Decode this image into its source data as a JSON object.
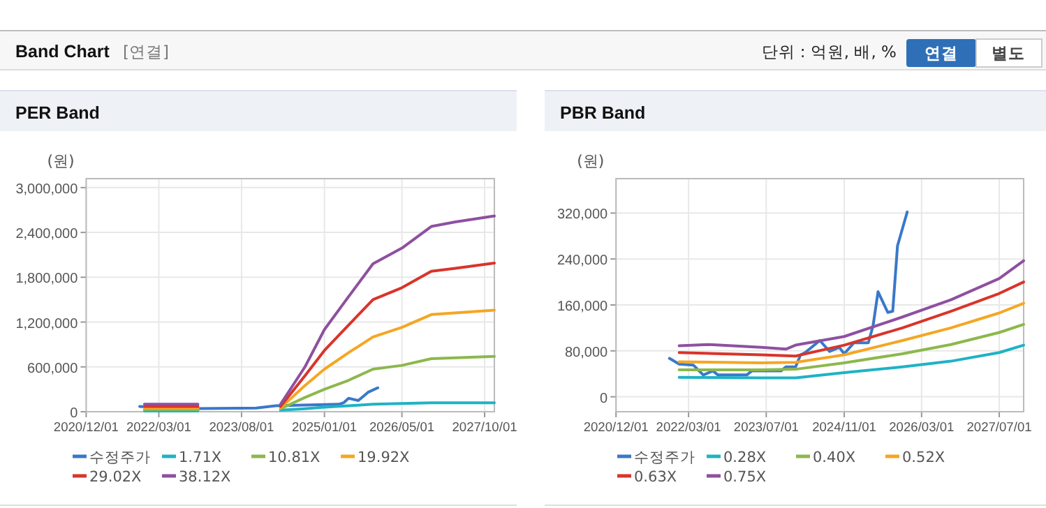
{
  "chart_data": [
    {
      "type": "other",
      "title": "Band Chart",
      "annotations": [
        "[연결]",
        "단위 : 억원, 배, %",
        "연결",
        "별도"
      ]
    },
    {
      "type": "line",
      "title": "PER Band",
      "ylabel": "(원)",
      "grid": true,
      "legend": "bottom",
      "xlim": [
        "2020-12-01",
        "2027-12-01"
      ],
      "xticks": [
        {
          "value": "2020-12-01",
          "label": "2020/12/01"
        },
        {
          "value": "2022-03-01",
          "label": "2022/03/01"
        },
        {
          "value": "2023-08-01",
          "label": "2023/08/01"
        },
        {
          "value": "2025-01-01",
          "label": "2025/01/01"
        },
        {
          "value": "2026-05-01",
          "label": "2026/05/01"
        },
        {
          "value": "2027-10-01",
          "label": "2027/10/01"
        }
      ],
      "ylim": [
        0,
        3120000
      ],
      "yticks": [
        0,
        {
          "value": 600000,
          "label": "600,000"
        },
        {
          "value": 1200000,
          "label": "1,200,000"
        },
        {
          "value": 1800000,
          "label": "1,800,000"
        },
        {
          "value": 2400000,
          "label": "2,400,000"
        },
        {
          "value": 3000000,
          "label": "3,000,000"
        }
      ],
      "series": [
        {
          "name": "수정주가",
          "color": "#3a78c9",
          "x": [
            "2021-11",
            "2022-06",
            "2023-11",
            "2024-03",
            "2025-04",
            "2025-05",
            "2025-06",
            "2025-08",
            "2025-10",
            "2025-12"
          ],
          "values": [
            70000,
            40000,
            50000,
            80000,
            100000,
            120000,
            180000,
            150000,
            260000,
            320000
          ]
        },
        {
          "name": "1.71X",
          "color": "#1eb3c4",
          "x": [
            "2021-12",
            "2022-11",
            "2022-12",
            "2024-04",
            "2024-09",
            "2025-01",
            "2025-06",
            "2025-11",
            "2026-05",
            "2026-11",
            "2027-12"
          ],
          "values": [
            10000,
            10000,
            null,
            20000,
            40000,
            60000,
            80000,
            100000,
            110000,
            120000,
            120000
          ]
        },
        {
          "name": "10.81X",
          "color": "#8cb84c",
          "x": [
            "2021-12",
            "2022-11",
            "2022-12",
            "2024-04",
            "2024-09",
            "2025-01",
            "2025-06",
            "2025-11",
            "2026-05",
            "2026-11",
            "2027-12"
          ],
          "values": [
            30000,
            30000,
            null,
            40000,
            190000,
            300000,
            420000,
            570000,
            620000,
            710000,
            740000
          ]
        },
        {
          "name": "19.92X",
          "color": "#f5a623",
          "x": [
            "2021-12",
            "2022-11",
            "2022-12",
            "2024-04",
            "2024-09",
            "2025-01",
            "2025-06",
            "2025-11",
            "2026-05",
            "2026-11",
            "2027-12"
          ],
          "values": [
            50000,
            50000,
            null,
            50000,
            350000,
            570000,
            790000,
            1000000,
            1130000,
            1300000,
            1360000
          ]
        },
        {
          "name": "29.02X",
          "color": "#d9342b",
          "x": [
            "2021-12",
            "2022-11",
            "2022-12",
            "2024-04",
            "2024-09",
            "2025-01",
            "2025-06",
            "2025-11",
            "2026-05",
            "2026-11",
            "2027-04",
            "2027-12"
          ],
          "values": [
            70000,
            70000,
            null,
            70000,
            480000,
            820000,
            1160000,
            1500000,
            1660000,
            1880000,
            1920000,
            1990000
          ]
        },
        {
          "name": "38.12X",
          "color": "#8e50a0",
          "x": [
            "2021-12",
            "2022-11",
            "2022-12",
            "2024-04",
            "2024-09",
            "2025-01",
            "2025-06",
            "2025-11",
            "2026-05",
            "2026-11",
            "2027-04",
            "2027-12"
          ],
          "values": [
            100000,
            100000,
            null,
            100000,
            600000,
            1100000,
            1540000,
            1980000,
            2190000,
            2480000,
            2540000,
            2620000
          ]
        }
      ]
    },
    {
      "type": "line",
      "title": "PBR Band",
      "ylabel": "(원)",
      "grid": true,
      "legend": "bottom",
      "xlim": [
        "2020-12-01",
        "2027-12-01"
      ],
      "xticks": [
        {
          "value": "2020-12-01",
          "label": "2020/12/01"
        },
        {
          "value": "2022-03-01",
          "label": "2022/03/01"
        },
        {
          "value": "2023-07-01",
          "label": "2023/07/01"
        },
        {
          "value": "2024-11-01",
          "label": "2024/11/01"
        },
        {
          "value": "2026-03-01",
          "label": "2026/03/01"
        },
        {
          "value": "2027-07-01",
          "label": "2027/07/01"
        }
      ],
      "ylim": [
        -26000,
        380000
      ],
      "yticks": [
        0,
        {
          "value": 80000,
          "label": "80,000"
        },
        {
          "value": 160000,
          "label": "160,000"
        },
        {
          "value": 240000,
          "label": "240,000"
        },
        {
          "value": 320000,
          "label": "320,000"
        }
      ],
      "series": [
        {
          "name": "수정주가",
          "color": "#3a78c9",
          "x": [
            "2021-11",
            "2022-01",
            "2022-04",
            "2022-06",
            "2022-08",
            "2022-09",
            "2023-03",
            "2023-04",
            "2023-10",
            "2023-11",
            "2024-01",
            "2024-02",
            "2024-03",
            "2024-06",
            "2024-08",
            "2024-10",
            "2024-11",
            "2025-01",
            "2025-04",
            "2025-05",
            "2025-06",
            "2025-08",
            "2025-09",
            "2025-10",
            "2025-12"
          ],
          "values": [
            67000,
            57000,
            55000,
            38000,
            45000,
            38000,
            38000,
            45000,
            45000,
            52000,
            52000,
            73000,
            77000,
            98000,
            79000,
            86000,
            75000,
            94000,
            94000,
            124000,
            183000,
            147000,
            149000,
            263000,
            322000
          ]
        },
        {
          "name": "0.28X",
          "color": "#1eb3c4",
          "x": [
            "2022-01",
            "2023-06",
            "2024-01",
            "2024-11",
            "2025-11",
            "2026-09",
            "2027-07",
            "2027-12"
          ],
          "values": [
            34000,
            33000,
            33000,
            42000,
            52000,
            62000,
            77000,
            90000
          ]
        },
        {
          "name": "0.40X",
          "color": "#8cb84c",
          "x": [
            "2022-01",
            "2023-06",
            "2024-01",
            "2024-11",
            "2025-11",
            "2026-09",
            "2027-07",
            "2027-12"
          ],
          "values": [
            47000,
            47000,
            48000,
            59000,
            75000,
            91000,
            112000,
            126000
          ]
        },
        {
          "name": "0.52X",
          "color": "#f5a623",
          "x": [
            "2022-01",
            "2023-06",
            "2024-01",
            "2024-11",
            "2025-11",
            "2026-09",
            "2027-07",
            "2027-12"
          ],
          "values": [
            61000,
            59000,
            60000,
            73000,
            98000,
            120000,
            146000,
            163000
          ]
        },
        {
          "name": "0.63X",
          "color": "#d9342b",
          "x": [
            "2022-01",
            "2023-06",
            "2024-01",
            "2024-11",
            "2025-11",
            "2026-09",
            "2027-07",
            "2027-12"
          ],
          "values": [
            77000,
            73000,
            71000,
            90000,
            120000,
            149000,
            180000,
            200000
          ]
        },
        {
          "name": "0.75X",
          "color": "#8e50a0",
          "x": [
            "2022-01",
            "2022-07",
            "2023-06",
            "2023-11",
            "2024-01",
            "2024-11",
            "2025-11",
            "2026-09",
            "2027-07",
            "2027-12"
          ],
          "values": [
            89000,
            91000,
            86000,
            83000,
            90000,
            105000,
            139000,
            169000,
            206000,
            237000
          ]
        }
      ]
    }
  ]
}
